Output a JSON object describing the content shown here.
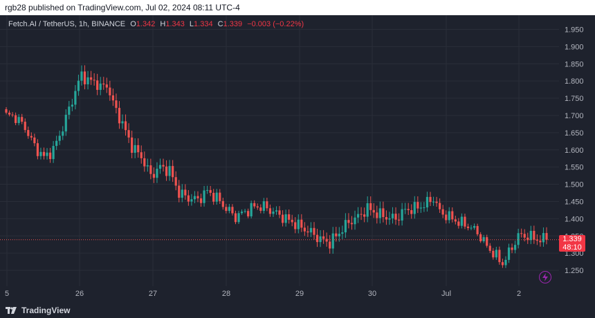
{
  "header": {
    "published_text": "rgb28 published on TradingView.com, Jul 02, 2024 08:11 UTC-4"
  },
  "legend": {
    "symbol": "Fetch.AI / TetherUS, 1h, BINANCE",
    "o_label": "O",
    "o_value": "1.342",
    "h_label": "H",
    "h_value": "1.343",
    "l_label": "L",
    "l_value": "1.334",
    "c_label": "C",
    "c_value": "1.339",
    "change": "−0.003 (−0.22%)"
  },
  "price_badge": {
    "price": "1.339",
    "countdown": "48:10"
  },
  "footer": {
    "brand": "TradingView"
  },
  "colors": {
    "up": "#26a69a",
    "down": "#ef5350",
    "background": "#1e222d",
    "grid": "#2a2e39",
    "text": "#b2b5be"
  },
  "icons": {
    "lightning": "lightning-icon",
    "logo": "tradingview-logo-icon"
  },
  "chart_data": {
    "type": "candlestick",
    "symbol": "FETUSDT",
    "interval": "1h",
    "ylim": [
      1.22,
      1.975
    ],
    "y_ticks": [
      "1.950",
      "1.900",
      "1.850",
      "1.800",
      "1.750",
      "1.700",
      "1.650",
      "1.600",
      "1.550",
      "1.500",
      "1.450",
      "1.400",
      "1.350",
      "1.300",
      "1.250"
    ],
    "x_ticks": [
      "5",
      "26",
      "27",
      "28",
      "29",
      "30",
      "Jul",
      "2"
    ],
    "last_price": 1.339,
    "close_path": [
      [
        0,
        1.7
      ],
      [
        3,
        1.695
      ],
      [
        6,
        1.665
      ],
      [
        9,
        1.61
      ],
      [
        12,
        1.578
      ],
      [
        15,
        1.6
      ],
      [
        18,
        1.665
      ],
      [
        21,
        1.745
      ],
      [
        24,
        1.82
      ],
      [
        26,
        1.8
      ],
      [
        28,
        1.8
      ],
      [
        30,
        1.78
      ],
      [
        32,
        1.79
      ],
      [
        34,
        1.735
      ],
      [
        37,
        1.675
      ],
      [
        40,
        1.61
      ],
      [
        43,
        1.58
      ],
      [
        46,
        1.525
      ],
      [
        49,
        1.55
      ],
      [
        52,
        1.54
      ],
      [
        55,
        1.475
      ],
      [
        58,
        1.46
      ],
      [
        61,
        1.455
      ],
      [
        64,
        1.48
      ],
      [
        67,
        1.46
      ],
      [
        70,
        1.43
      ],
      [
        73,
        1.405
      ],
      [
        76,
        1.42
      ],
      [
        79,
        1.435
      ],
      [
        82,
        1.435
      ],
      [
        85,
        1.42
      ],
      [
        88,
        1.405
      ],
      [
        91,
        1.39
      ],
      [
        94,
        1.375
      ],
      [
        97,
        1.36
      ],
      [
        100,
        1.34
      ],
      [
        103,
        1.33
      ],
      [
        106,
        1.36
      ],
      [
        109,
        1.39
      ],
      [
        112,
        1.405
      ],
      [
        115,
        1.43
      ],
      [
        118,
        1.415
      ],
      [
        121,
        1.405
      ],
      [
        124,
        1.4
      ],
      [
        127,
        1.425
      ],
      [
        130,
        1.43
      ],
      [
        133,
        1.44
      ],
      [
        136,
        1.46
      ],
      [
        138,
        1.42
      ],
      [
        141,
        1.405
      ],
      [
        144,
        1.39
      ],
      [
        147,
        1.38
      ],
      [
        150,
        1.36
      ],
      [
        153,
        1.32
      ],
      [
        156,
        1.29
      ],
      [
        158,
        1.27
      ],
      [
        160,
        1.3
      ],
      [
        163,
        1.35
      ],
      [
        166,
        1.35
      ],
      [
        169,
        1.34
      ],
      [
        172,
        1.339
      ]
    ]
  }
}
